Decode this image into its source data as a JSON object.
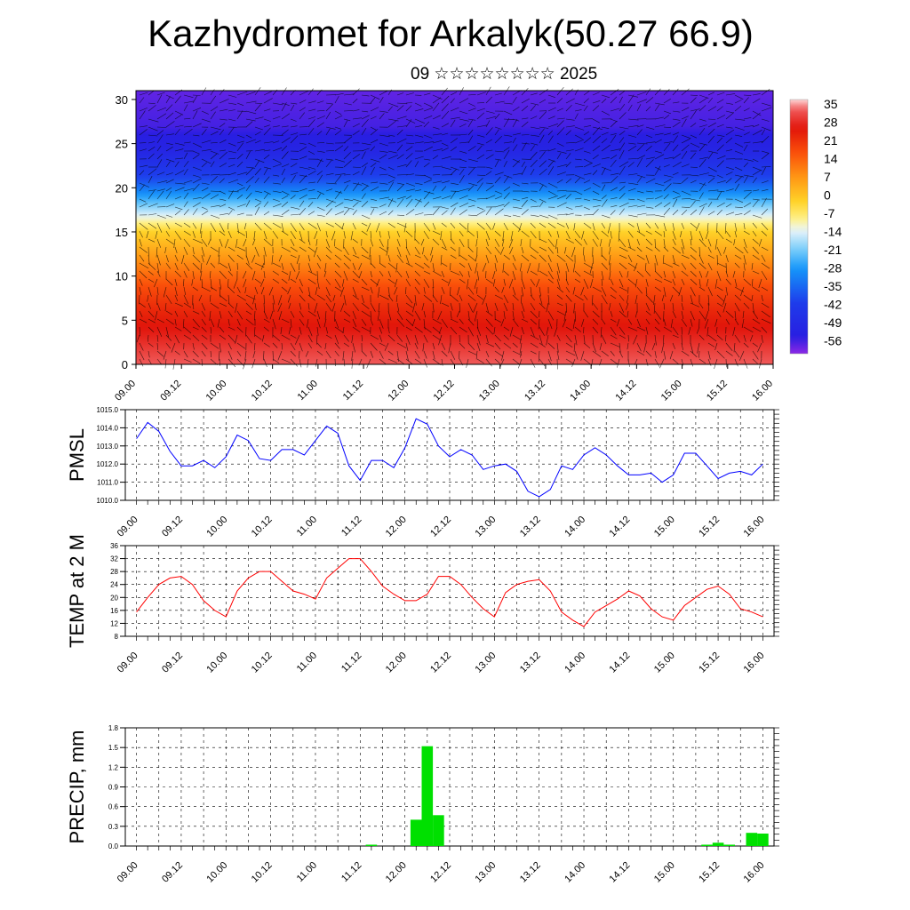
{
  "title": "Kazhydromet for Arkalyk(50.27 66.9)",
  "subtitle": "09 ☆☆☆☆☆☆☆☆ 2025",
  "chart_data": [
    {
      "type": "heatmap",
      "title": "Kazhydromet for Arkalyk(50.27 66.9)",
      "x_tick_labels": [
        "09.00",
        "09.12",
        "10.00",
        "10.12",
        "11.00",
        "11.12",
        "12.00",
        "12.12",
        "13.00",
        "13.12",
        "14.00",
        "14.12",
        "15.00",
        "15.12",
        "16.00"
      ],
      "y_ticks": [
        0,
        5,
        10,
        15,
        20,
        25,
        30
      ],
      "ylim": [
        0,
        31
      ],
      "colorbar_labels": [
        "35",
        "28",
        "21",
        "14",
        "7",
        "0",
        "-7",
        "-14",
        "-21",
        "-28",
        "-35",
        "-42",
        "-49",
        "-56"
      ],
      "colorbar_range": [
        -63,
        42
      ],
      "temperature_profile": {
        "levels": [
          0,
          3,
          6,
          9,
          12,
          15,
          16,
          18,
          21,
          24,
          27,
          31
        ],
        "values": [
          38,
          32,
          27,
          20,
          10,
          0,
          -7,
          -20,
          -40,
          -52,
          -58,
          -60
        ]
      },
      "overlay": "wind barbs"
    },
    {
      "type": "line",
      "ylabel": "PMSL",
      "ylim": [
        1010.0,
        1015.0
      ],
      "y_tick_labels": [
        "1015.0",
        "1014.0",
        "1013.0",
        "1012.0",
        "1011.0",
        "1010.0"
      ],
      "x_tick_labels": [
        "09.00",
        "09.12",
        "10.00",
        "10.12",
        "11.00",
        "11.12",
        "12.00",
        "12.12",
        "13.00",
        "13.12",
        "14.00",
        "14.12",
        "15.00",
        "15.12",
        "16.00"
      ],
      "color": "#0000ff",
      "values": [
        1013.4,
        1014.3,
        1013.8,
        1012.7,
        1011.9,
        1011.9,
        1012.2,
        1011.8,
        1012.4,
        1013.6,
        1013.3,
        1012.3,
        1012.2,
        1012.8,
        1012.8,
        1012.5,
        1013.3,
        1014.1,
        1013.7,
        1011.9,
        1011.1,
        1012.2,
        1012.2,
        1011.8,
        1012.9,
        1014.5,
        1014.2,
        1013.0,
        1012.4,
        1012.8,
        1012.5,
        1011.7,
        1011.9,
        1012.0,
        1011.6,
        1010.5,
        1010.2,
        1010.6,
        1011.9,
        1011.7,
        1012.5,
        1012.9,
        1012.5,
        1011.9,
        1011.4,
        1011.4,
        1011.5,
        1011.0,
        1011.4,
        1012.6,
        1012.6,
        1011.9,
        1011.2,
        1011.5,
        1011.6,
        1011.4,
        1012.0
      ]
    },
    {
      "type": "line",
      "ylabel": "TEMP at 2 M",
      "ylim": [
        8,
        36
      ],
      "y_tick_labels": [
        "36",
        "32",
        "28",
        "24",
        "20",
        "16",
        "12",
        "8"
      ],
      "x_tick_labels": [
        "09.00",
        "09.12",
        "10.00",
        "10.12",
        "11.00",
        "11.12",
        "12.00",
        "12.12",
        "13.00",
        "13.12",
        "14.00",
        "14.12",
        "15.00",
        "15.12",
        "16.00"
      ],
      "color": "#ff0000",
      "values": [
        15.5,
        20,
        24,
        26,
        26.5,
        24,
        19,
        16,
        14,
        22,
        26,
        28,
        28,
        25,
        22,
        21,
        19.5,
        26,
        29,
        32,
        32,
        28,
        23.5,
        21,
        19,
        19,
        21,
        26.5,
        26.5,
        24,
        20,
        16.5,
        14,
        21.5,
        24,
        25,
        25.5,
        22,
        15.5,
        13,
        11,
        15.5,
        17.5,
        19.5,
        22,
        20.5,
        16.5,
        14,
        13,
        17.5,
        20,
        22.5,
        23.5,
        21,
        16.5,
        15.5,
        14
      ]
    },
    {
      "type": "bar",
      "ylabel": "PRECIP, mm",
      "ylim": [
        0.0,
        1.8
      ],
      "y_tick_labels": [
        "1.8",
        "1.5",
        "1.2",
        "0.9",
        "0.6",
        "0.3",
        "0.0"
      ],
      "x_tick_labels": [
        "09.00",
        "09.12",
        "10.00",
        "10.12",
        "11.00",
        "11.12",
        "12.00",
        "12.12",
        "13.00",
        "13.12",
        "14.00",
        "14.12",
        "15.00",
        "15.12",
        "16.00"
      ],
      "color": "#00e000",
      "values": [
        0,
        0,
        0,
        0,
        0,
        0,
        0,
        0,
        0,
        0,
        0,
        0,
        0,
        0,
        0,
        0,
        0,
        0,
        0,
        0,
        0,
        0.02,
        0,
        0,
        0,
        0.4,
        1.52,
        0.47,
        0,
        0,
        0,
        0,
        0,
        0,
        0,
        0,
        0,
        0,
        0,
        0,
        0,
        0,
        0,
        0,
        0,
        0,
        0,
        0,
        0,
        0,
        0,
        0.02,
        0.05,
        0.02,
        0,
        0.2,
        0.19
      ]
    }
  ]
}
